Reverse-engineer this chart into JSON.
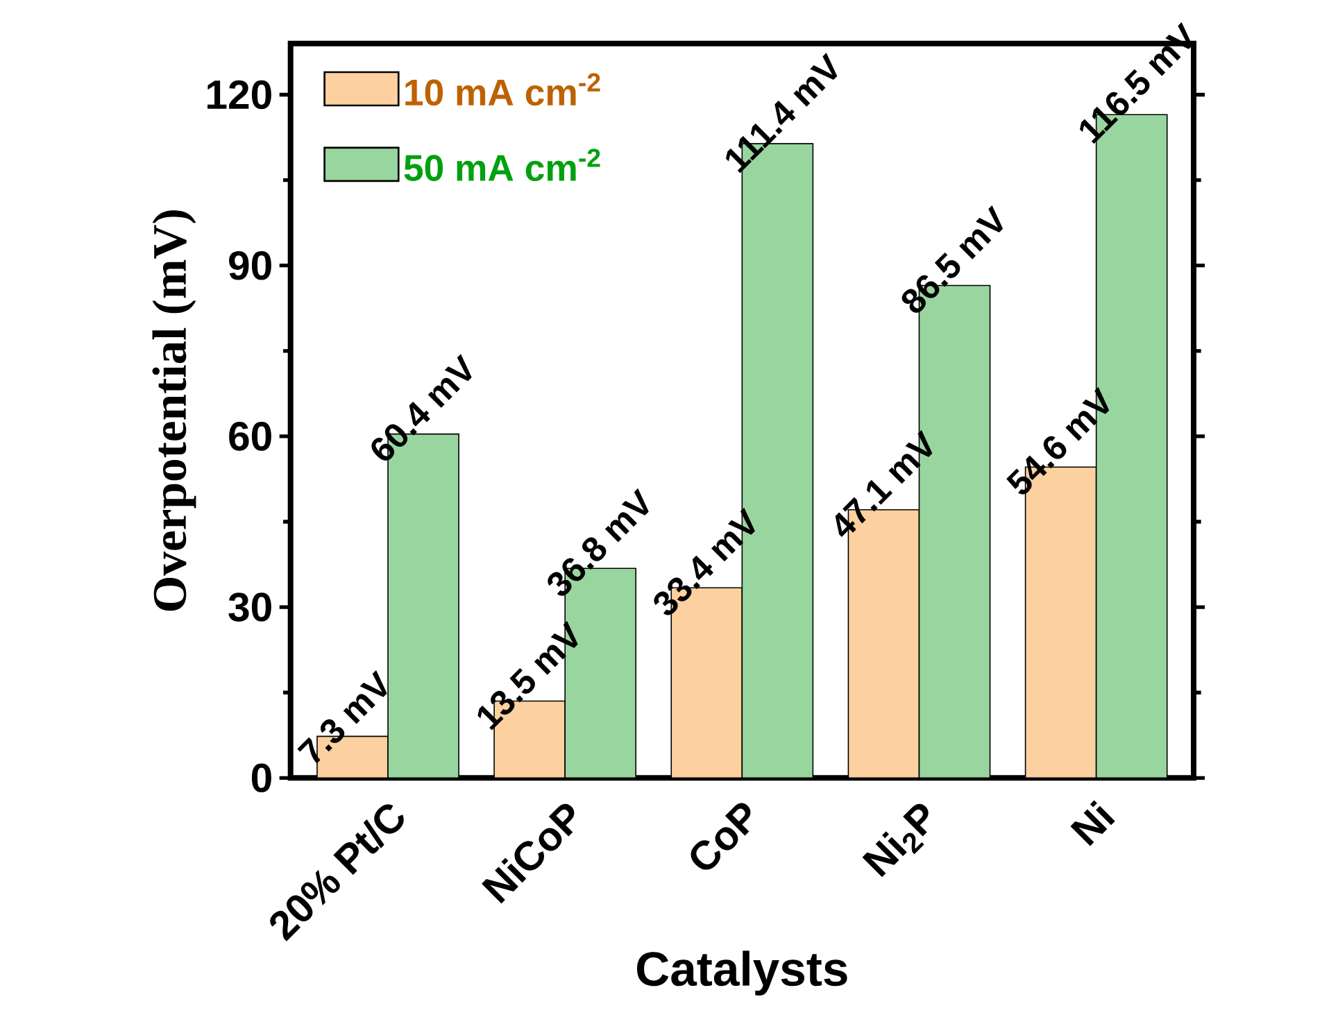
{
  "chart_data": {
    "type": "bar",
    "xlabel": "Catalysts",
    "ylabel": "Overpotential (mV)",
    "categories": [
      "20% Pt/C",
      "NiCoP",
      "CoP",
      "Ni$_{2}$P",
      "Ni"
    ],
    "series": [
      {
        "name": "10 mA cm$^{-2}$",
        "color": "#fdd09f",
        "values": [
          7.3,
          13.5,
          33.4,
          47.1,
          54.6
        ],
        "value_labels": [
          "7.3 mV",
          "13.5 mV",
          "33.4 mV",
          "47.1 mV",
          "54.6 mV"
        ]
      },
      {
        "name": "50 mA cm$^{-2}$",
        "color": "#99d69f",
        "values": [
          60.4,
          36.8,
          111.4,
          86.5,
          116.5
        ],
        "value_labels": [
          "60.4 mV",
          "36.8 mV",
          "111.4 mV",
          "86.5 mV",
          "116.5 mV"
        ]
      }
    ],
    "ylim": [
      0,
      129
    ],
    "yticks": [
      0,
      30,
      60,
      90,
      120
    ],
    "grid": false,
    "legend": "top left"
  }
}
